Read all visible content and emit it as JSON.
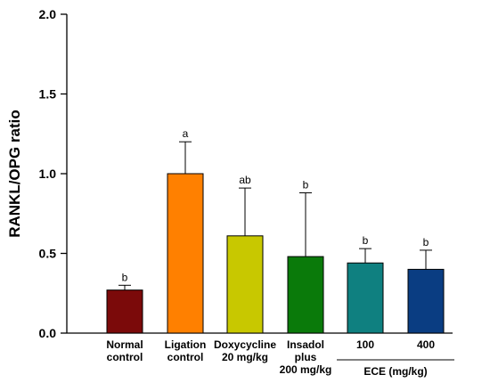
{
  "chart_data": {
    "type": "bar",
    "ylabel": "RANKL/OPG ratio",
    "xlabel": "",
    "ylim": [
      0.0,
      2.0
    ],
    "yticks": [
      "0.0",
      "0.5",
      "1.0",
      "1.5",
      "2.0"
    ],
    "categories": [
      {
        "lines": [
          "Normal",
          "control"
        ]
      },
      {
        "lines": [
          "Ligation",
          "control"
        ]
      },
      {
        "lines": [
          "Doxycycline",
          "20 mg/kg"
        ]
      },
      {
        "lines": [
          "Insadol",
          "plus",
          "200 mg/kg"
        ]
      },
      {
        "lines": [
          "100"
        ]
      },
      {
        "lines": [
          "400"
        ]
      }
    ],
    "group_label": {
      "text": "ECE (mg/kg)",
      "categories": [
        4,
        5
      ]
    },
    "values": [
      0.27,
      1.0,
      0.61,
      0.48,
      0.44,
      0.4
    ],
    "errors": [
      0.03,
      0.2,
      0.3,
      0.4,
      0.09,
      0.12
    ],
    "significance": [
      "b",
      "a",
      "ab",
      "b",
      "b",
      "b"
    ],
    "colors": [
      "#7b0a0a",
      "#ff8000",
      "#c8c800",
      "#0a7a0a",
      "#0f8080",
      "#0a3d82"
    ],
    "grid": false
  }
}
